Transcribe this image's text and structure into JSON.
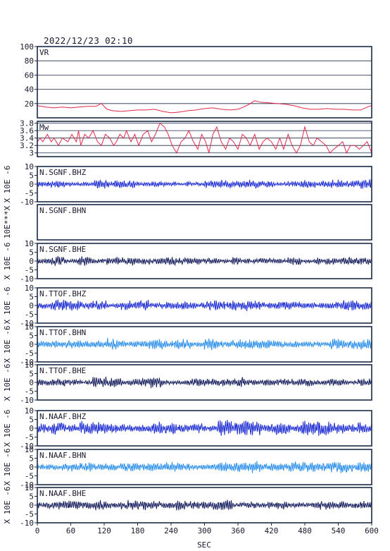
{
  "header": {
    "timestamp": "2022/12/23 02:10"
  },
  "colors": {
    "frame": "#1a2a44",
    "text": "#1a1a2e",
    "vr_line": "#e0284a",
    "mw_line": "#e0284a",
    "grid": "#1a2a44",
    "trace_blue": "#1c2bd0",
    "trace_lightblue": "#2a8ee8",
    "trace_navy": "#141c5c"
  },
  "chart_data": {
    "type": "line",
    "xlabel": "SEC",
    "xlim": [
      0,
      600
    ],
    "xticks": [
      0,
      60,
      120,
      180,
      240,
      300,
      360,
      420,
      480,
      540,
      600
    ],
    "panels": [
      {
        "id": "vr",
        "label": "VR",
        "ylim": [
          0,
          100
        ],
        "yticks": [
          20,
          40,
          60,
          80,
          100
        ],
        "grid": true,
        "color": "vr_line",
        "kind": "series",
        "x": [
          0,
          15,
          30,
          45,
          60,
          75,
          90,
          105,
          115,
          125,
          135,
          150,
          165,
          180,
          195,
          210,
          225,
          240,
          255,
          270,
          285,
          300,
          315,
          330,
          345,
          360,
          370,
          380,
          390,
          400,
          415,
          430,
          445,
          460,
          475,
          490,
          505,
          520,
          535,
          550,
          565,
          580,
          595,
          600
        ],
        "y": [
          17,
          15,
          14,
          15,
          14,
          15,
          16,
          16,
          20,
          12,
          10,
          9,
          10,
          11,
          11,
          12,
          9,
          7,
          8,
          10,
          11,
          13,
          14,
          12,
          11,
          12,
          15,
          19,
          24,
          22,
          21,
          20,
          19,
          17,
          14,
          12,
          12,
          13,
          12,
          12,
          11,
          11,
          16,
          17
        ]
      },
      {
        "id": "mw",
        "label": "Mw",
        "ylim": [
          2.9,
          3.85
        ],
        "yticks": [
          3.0,
          3.2,
          3.4,
          3.6,
          3.8
        ],
        "grid": true,
        "color": "mw_line",
        "kind": "series",
        "x": [
          0,
          5,
          10,
          18,
          25,
          30,
          38,
          45,
          55,
          62,
          70,
          74,
          78,
          85,
          92,
          100,
          108,
          115,
          122,
          130,
          137,
          142,
          148,
          155,
          160,
          168,
          175,
          182,
          190,
          198,
          205,
          212,
          220,
          228,
          235,
          242,
          250,
          258,
          265,
          272,
          280,
          288,
          295,
          302,
          308,
          315,
          322,
          330,
          338,
          345,
          352,
          360,
          368,
          375,
          382,
          390,
          398,
          405,
          412,
          420,
          428,
          435,
          442,
          450,
          457,
          465,
          472,
          480,
          488,
          495,
          502,
          510,
          518,
          525,
          532,
          540,
          548,
          555,
          562,
          570,
          578,
          585,
          592,
          600
        ],
        "y": [
          3.3,
          3.4,
          3.3,
          3.5,
          3.3,
          3.4,
          3.2,
          3.4,
          3.3,
          3.5,
          3.3,
          3.6,
          3.2,
          3.5,
          3.4,
          3.6,
          3.3,
          3.2,
          3.5,
          3.4,
          3.2,
          3.3,
          3.5,
          3.4,
          3.6,
          3.3,
          3.5,
          3.2,
          3.5,
          3.6,
          3.3,
          3.5,
          3.8,
          3.7,
          3.5,
          3.2,
          3.0,
          3.3,
          3.4,
          3.6,
          3.3,
          3.1,
          3.5,
          3.3,
          3.0,
          3.5,
          3.7,
          3.3,
          3.1,
          3.4,
          3.3,
          3.1,
          3.5,
          3.4,
          3.2,
          3.5,
          3.1,
          3.3,
          3.4,
          3.3,
          3.1,
          3.4,
          3.1,
          3.5,
          3.2,
          3.0,
          3.2,
          3.7,
          3.3,
          3.2,
          3.4,
          3.3,
          3.2,
          3.0,
          3.1,
          3.2,
          3.3,
          3.0,
          3.2,
          3.2,
          3.1,
          3.2,
          3.3,
          3.0
        ]
      },
      {
        "id": "sgnf-bhz",
        "label": "N.SGNF.BHZ",
        "ylabel": "X 10E -6",
        "ylim": [
          -10,
          10
        ],
        "yticks": [
          -10,
          -5,
          0,
          5,
          10
        ],
        "color": "trace_blue",
        "kind": "waveform",
        "amplitude": 1.6,
        "seed": 11
      },
      {
        "id": "sgnf-bhn",
        "label": "N.SGNF.BHN",
        "ylabel": "10E***X",
        "ylim": null,
        "yticks": [],
        "color": "trace_blue",
        "kind": "empty"
      },
      {
        "id": "sgnf-bhe",
        "label": "N.SGNF.BHE",
        "ylabel": "X 10E -6",
        "ylim": [
          -10,
          10
        ],
        "yticks": [
          -10,
          -5,
          0,
          5,
          10
        ],
        "color": "trace_navy",
        "kind": "waveform",
        "amplitude": 1.7,
        "seed": 23
      },
      {
        "id": "ttof-bhz",
        "label": "N.TTOF.BHZ",
        "ylabel": "X 10E -6",
        "ylim": [
          -10,
          10
        ],
        "yticks": [
          -10,
          -5,
          0,
          5,
          10
        ],
        "color": "trace_blue",
        "kind": "waveform",
        "amplitude": 2.0,
        "seed": 37
      },
      {
        "id": "ttof-bhn",
        "label": "N.TTOF.BHN",
        "ylabel": "X 10E -6",
        "ylim": [
          -10,
          10
        ],
        "yticks": [
          -10,
          -5,
          0,
          5,
          10
        ],
        "color": "trace_lightblue",
        "kind": "waveform",
        "amplitude": 2.0,
        "seed": 41
      },
      {
        "id": "ttof-bhe",
        "label": "N.TTOF.BHE",
        "ylabel": "X 10E -6",
        "ylim": [
          -10,
          10
        ],
        "yticks": [
          -10,
          -5,
          0,
          5,
          10
        ],
        "color": "trace_navy",
        "kind": "waveform",
        "amplitude": 1.9,
        "seed": 53
      },
      {
        "id": "naaf-bhz",
        "label": "N.NAAF.BHZ",
        "ylabel": "X 10E -6",
        "ylim": [
          -10,
          10
        ],
        "yticks": [
          -10,
          -5,
          0,
          5,
          10
        ],
        "color": "trace_blue",
        "kind": "waveform",
        "amplitude": 2.8,
        "seed": 67
      },
      {
        "id": "naaf-bhn",
        "label": "N.NAAF.BHN",
        "ylabel": "X 10E -6",
        "ylim": [
          -10,
          10
        ],
        "yticks": [
          -10,
          -5,
          0,
          5,
          10
        ],
        "color": "trace_lightblue",
        "kind": "waveform",
        "amplitude": 2.0,
        "seed": 71
      },
      {
        "id": "naaf-bhe",
        "label": "N.NAAF.BHE",
        "ylabel": "X 10E -6",
        "ylim": [
          -10,
          10
        ],
        "yticks": [
          -10,
          -5,
          0,
          5,
          10
        ],
        "color": "trace_navy",
        "kind": "waveform",
        "amplitude": 2.0,
        "seed": 83
      }
    ]
  }
}
